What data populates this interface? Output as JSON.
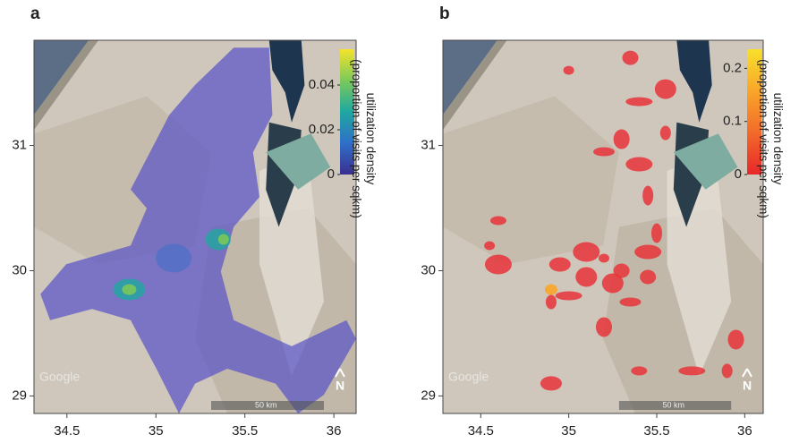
{
  "chart_data": [
    {
      "type": "map",
      "panel": "a",
      "xlim": [
        34.315,
        36.125
      ],
      "ylim": [
        28.86,
        31.84
      ],
      "xticks": [
        34.5,
        35,
        35.5,
        36
      ],
      "yticks": [
        29,
        30,
        31
      ],
      "colorbar": {
        "title": "utilization density\n(proportion of visits per sqkm)",
        "lim": [
          0,
          0.056
        ],
        "ticks": [
          0,
          0.02,
          0.04
        ],
        "colors": [
          "#3b2f8f",
          "#2f6fc9",
          "#1fa8a0",
          "#7bc95a",
          "#f5e42a"
        ]
      },
      "overlay_color": "#5a55c8",
      "watermark": "Google",
      "scale_label": "50 km",
      "north": "N"
    },
    {
      "type": "map",
      "panel": "b",
      "xlim": [
        34.285,
        36.105
      ],
      "ylim": [
        28.86,
        31.84
      ],
      "xticks": [
        34.5,
        35,
        35.5,
        36
      ],
      "yticks": [
        29,
        30,
        31
      ],
      "colorbar": {
        "title": "utilization density\n(proportion of visits per sqkm)",
        "lim": [
          0,
          0.236
        ],
        "ticks": [
          0,
          0.1,
          0.2
        ],
        "colors": [
          "#e8262a",
          "#f26a2a",
          "#f8a62a",
          "#f8e02a"
        ]
      },
      "overlay_color": "#e8333a",
      "watermark": "Google",
      "scale_label": "50 km",
      "north": "N"
    }
  ]
}
